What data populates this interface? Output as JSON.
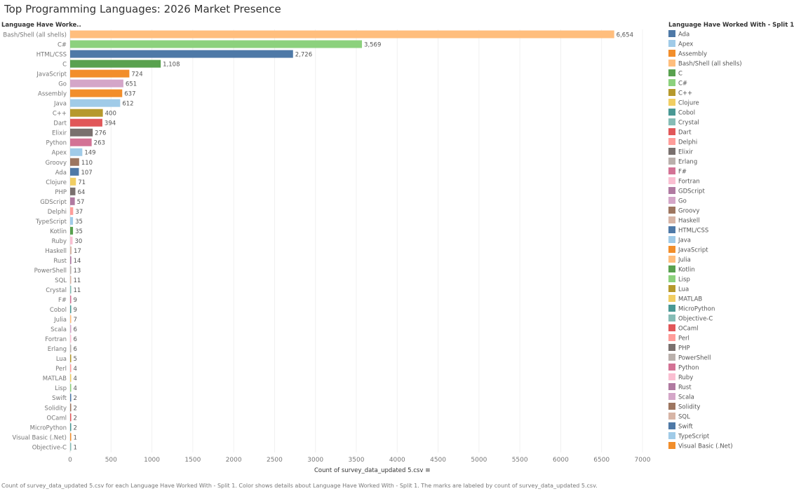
{
  "chart_data": {
    "type": "bar",
    "orientation": "horizontal",
    "title": "Top Programming Languages: 2026 Market Presence",
    "ylabel": "Language Have Worke..",
    "xlabel": "Count of survey_data_updated 5.csv",
    "xlim": [
      0,
      7000
    ],
    "xticks": [
      0,
      500,
      1000,
      1500,
      2000,
      2500,
      3000,
      3500,
      4000,
      4500,
      5000,
      5500,
      6000,
      6500,
      7000
    ],
    "grid": "vertical",
    "legend_title": "Language Have Worked With - Split 1",
    "legend_position": "right",
    "categories": [
      "Bash/Shell (all shells)",
      "C#",
      "HTML/CSS",
      "C",
      "JavaScript",
      "Go",
      "Assembly",
      "Java",
      "C++",
      "Dart",
      "Elixir",
      "Python",
      "Apex",
      "Groovy",
      "Ada",
      "Clojure",
      "PHP",
      "GDScript",
      "Delphi",
      "TypeScript",
      "Kotlin",
      "Ruby",
      "Haskell",
      "Rust",
      "PowerShell",
      "SQL",
      "Crystal",
      "F#",
      "Cobol",
      "Julia",
      "Scala",
      "Fortran",
      "Erlang",
      "Lua",
      "Perl",
      "MATLAB",
      "Lisp",
      "Swift",
      "Solidity",
      "OCaml",
      "MicroPython",
      "Visual Basic (.Net)",
      "Objective-C"
    ],
    "values": [
      6654,
      3569,
      2726,
      1108,
      724,
      651,
      637,
      612,
      400,
      394,
      276,
      263,
      149,
      110,
      107,
      71,
      64,
      57,
      37,
      35,
      35,
      30,
      17,
      14,
      13,
      11,
      11,
      9,
      9,
      7,
      6,
      6,
      6,
      5,
      4,
      4,
      4,
      2,
      2,
      2,
      2,
      1,
      1
    ],
    "value_labels": [
      "6,654",
      "3,569",
      "2,726",
      "1,108",
      "724",
      "651",
      "637",
      "612",
      "400",
      "394",
      "276",
      "263",
      "149",
      "110",
      "107",
      "71",
      "64",
      "57",
      "37",
      "35",
      "35",
      "30",
      "17",
      "14",
      "13",
      "11",
      "11",
      "9",
      "9",
      "7",
      "6",
      "6",
      "6",
      "5",
      "4",
      "4",
      "4",
      "2",
      "2",
      "2",
      "2",
      "1",
      "1"
    ],
    "legend": [
      {
        "name": "Ada",
        "color": "#4E79A7"
      },
      {
        "name": "Apex",
        "color": "#A0CBE8"
      },
      {
        "name": "Assembly",
        "color": "#F28E2B"
      },
      {
        "name": "Bash/Shell (all shells)",
        "color": "#FFBE7D"
      },
      {
        "name": "C",
        "color": "#59A14F"
      },
      {
        "name": "C#",
        "color": "#8CD17D"
      },
      {
        "name": "C++",
        "color": "#B6992D"
      },
      {
        "name": "Clojure",
        "color": "#F1CE63"
      },
      {
        "name": "Cobol",
        "color": "#499894"
      },
      {
        "name": "Crystal",
        "color": "#86BCB6"
      },
      {
        "name": "Dart",
        "color": "#E15759"
      },
      {
        "name": "Delphi",
        "color": "#FF9D9A"
      },
      {
        "name": "Elixir",
        "color": "#79706E"
      },
      {
        "name": "Erlang",
        "color": "#BAB0AC"
      },
      {
        "name": "F#",
        "color": "#D37295"
      },
      {
        "name": "Fortran",
        "color": "#FABFD2"
      },
      {
        "name": "GDScript",
        "color": "#B07AA1"
      },
      {
        "name": "Go",
        "color": "#D4A6C8"
      },
      {
        "name": "Groovy",
        "color": "#9D7660"
      },
      {
        "name": "Haskell",
        "color": "#D7B5A6"
      },
      {
        "name": "HTML/CSS",
        "color": "#4E79A7"
      },
      {
        "name": "Java",
        "color": "#A0CBE8"
      },
      {
        "name": "JavaScript",
        "color": "#F28E2B"
      },
      {
        "name": "Julia",
        "color": "#FFBE7D"
      },
      {
        "name": "Kotlin",
        "color": "#59A14F"
      },
      {
        "name": "Lisp",
        "color": "#8CD17D"
      },
      {
        "name": "Lua",
        "color": "#B6992D"
      },
      {
        "name": "MATLAB",
        "color": "#F1CE63"
      },
      {
        "name": "MicroPython",
        "color": "#499894"
      },
      {
        "name": "Objective-C",
        "color": "#86BCB6"
      },
      {
        "name": "OCaml",
        "color": "#E15759"
      },
      {
        "name": "Perl",
        "color": "#FF9D9A"
      },
      {
        "name": "PHP",
        "color": "#79706E"
      },
      {
        "name": "PowerShell",
        "color": "#BAB0AC"
      },
      {
        "name": "Python",
        "color": "#D37295"
      },
      {
        "name": "Ruby",
        "color": "#FABFD2"
      },
      {
        "name": "Rust",
        "color": "#B07AA1"
      },
      {
        "name": "Scala",
        "color": "#D4A6C8"
      },
      {
        "name": "Solidity",
        "color": "#9D7660"
      },
      {
        "name": "SQL",
        "color": "#D7B5A6"
      },
      {
        "name": "Swift",
        "color": "#4E79A7"
      },
      {
        "name": "TypeScript",
        "color": "#A0CBE8"
      },
      {
        "name": "Visual Basic (.Net)",
        "color": "#F28E2B"
      }
    ]
  },
  "footer": "Count of survey_data_updated 5.csv for each Language Have Worked With - Split 1.  Color shows details about Language Have Worked With - Split 1.  The marks are labeled by count of survey_data_updated 5.csv."
}
